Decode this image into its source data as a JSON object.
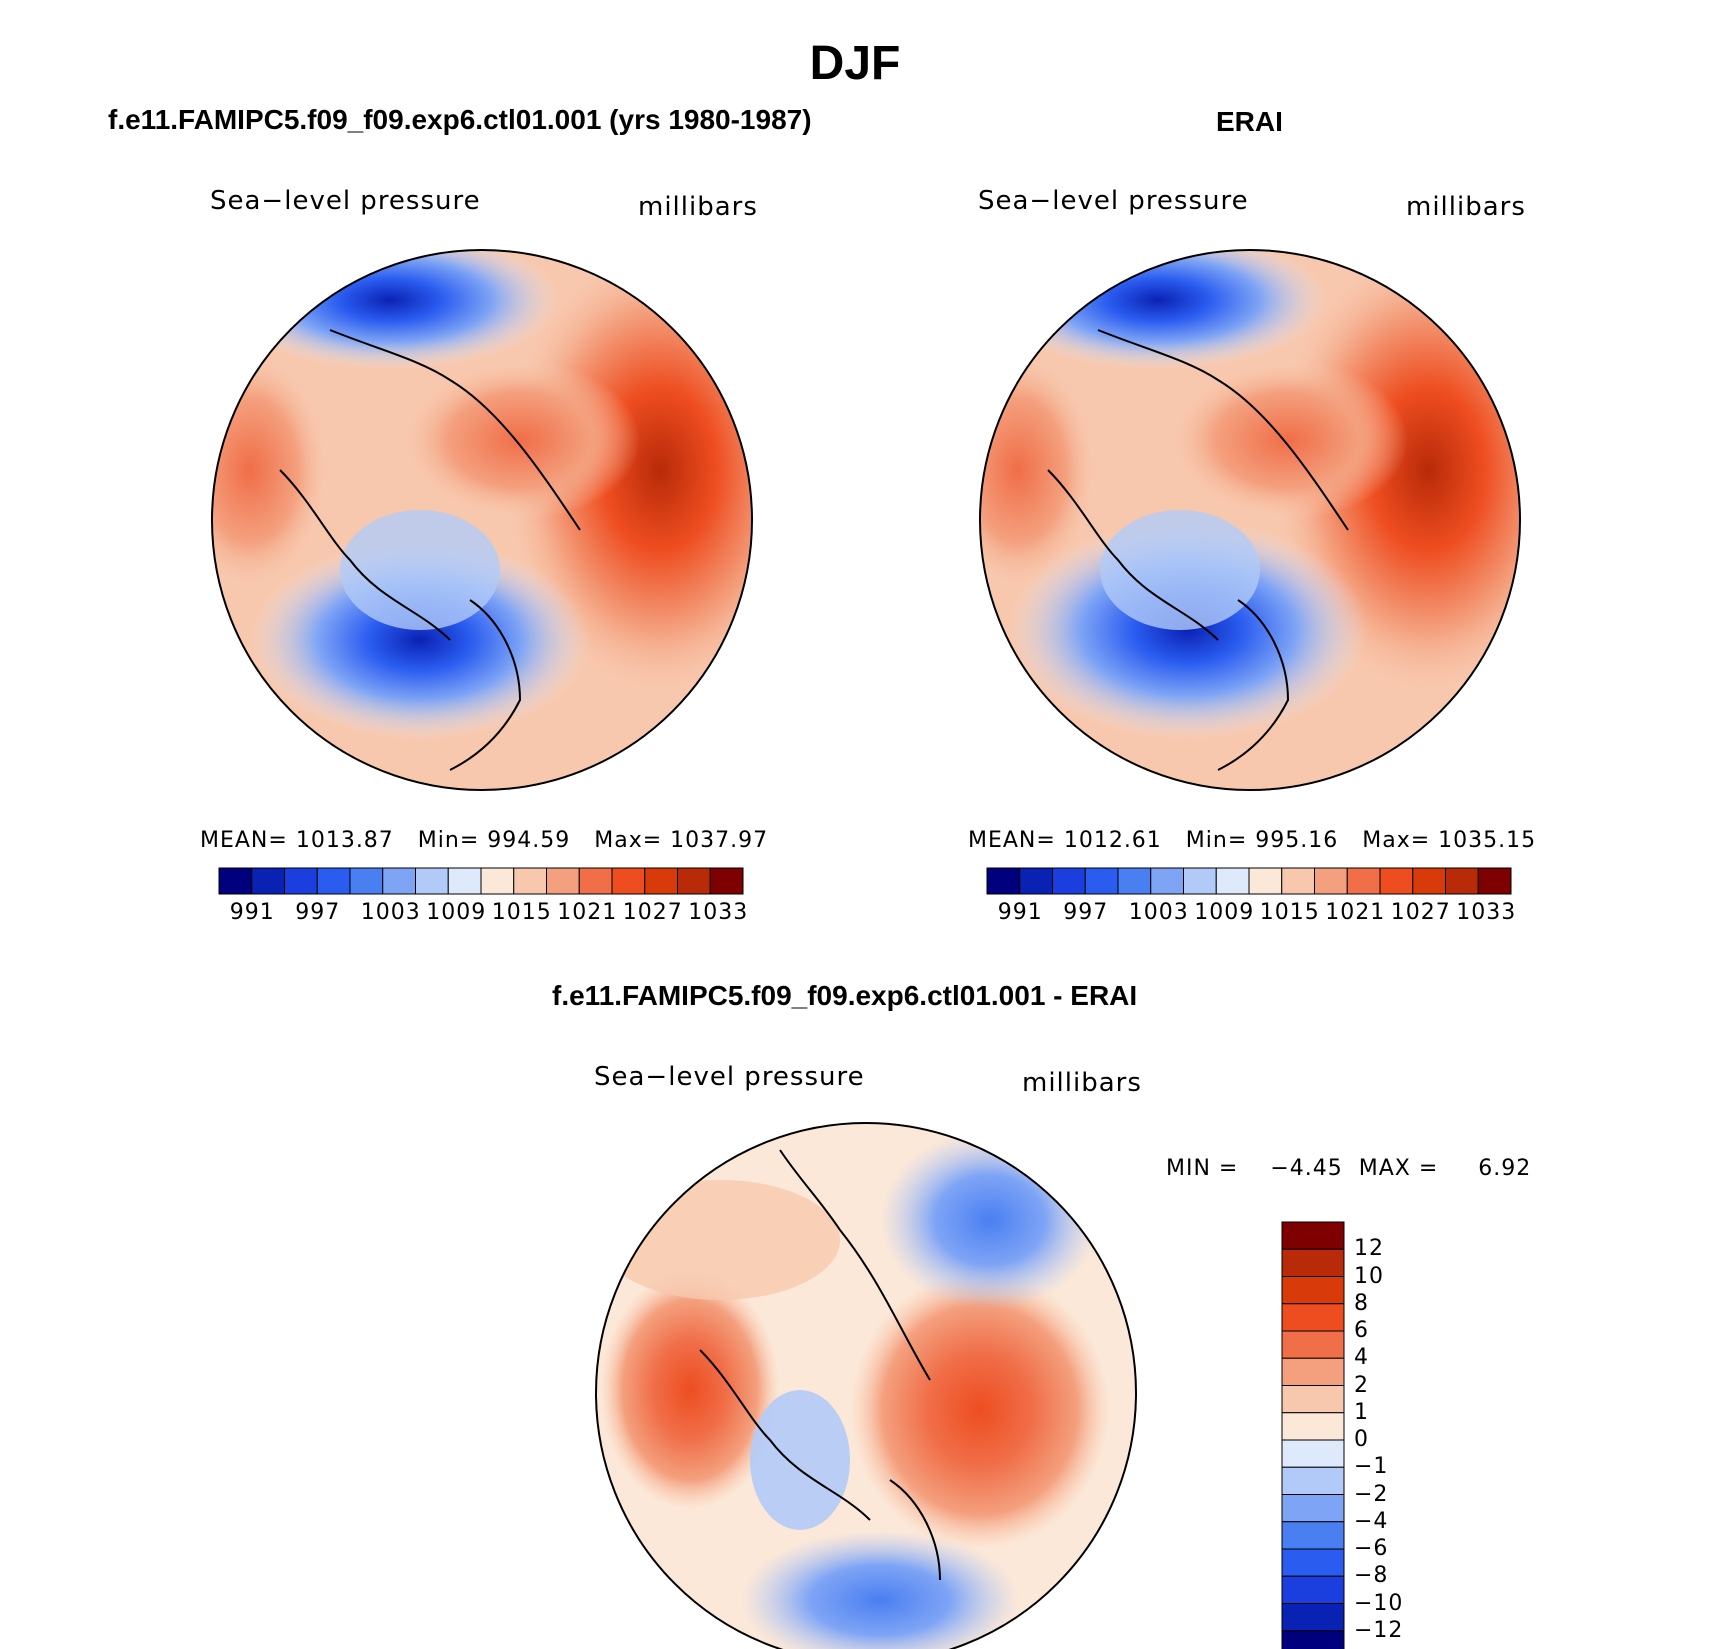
{
  "title": "DJF",
  "panels": [
    {
      "id": "model",
      "title": "f.e11.FAMIPC5.f09_f09.exp6.ctl01.001 (yrs 1980-1987)",
      "variable": "Sea−level pressure",
      "units": "millibars",
      "stats": {
        "mean_label": "MEAN=",
        "mean": "1013.87",
        "min_label": "Min=",
        "min": "994.59",
        "max_label": "Max=",
        "max": "1037.97"
      },
      "colorbar_labels": [
        "991",
        "997",
        "1003",
        "1009",
        "1015",
        "1021",
        "1027",
        "1033"
      ]
    },
    {
      "id": "obs",
      "title": "ERAI",
      "variable": "Sea−level pressure",
      "units": "millibars",
      "stats": {
        "mean_label": "MEAN=",
        "mean": "1012.61",
        "min_label": "Min=",
        "min": "995.16",
        "max_label": "Max=",
        "max": "1035.15"
      },
      "colorbar_labels": [
        "991",
        "997",
        "1003",
        "1009",
        "1015",
        "1021",
        "1027",
        "1033"
      ]
    },
    {
      "id": "diff",
      "title": "f.e11.FAMIPC5.f09_f09.exp6.ctl01.001 - ERAI",
      "variable": "Sea−level pressure",
      "units": "millibars",
      "stats": {
        "min_label": "MIN =",
        "min": "−4.45",
        "max_label": "MAX =",
        "max": "6.92"
      },
      "colorbar_labels": [
        "12",
        "10",
        "8",
        "6",
        "4",
        "2",
        "1",
        "0",
        "−1",
        "−2",
        "−4",
        "−6",
        "−8",
        "−10",
        "−12"
      ]
    }
  ],
  "colors": {
    "abs_scale": [
      "#00007f",
      "#0a22b4",
      "#1a3fde",
      "#2a5cf0",
      "#4a7ff2",
      "#7ea4f5",
      "#b2caf8",
      "#deeafb",
      "#fce8d8",
      "#f8c8ae",
      "#f4a07e",
      "#f06e48",
      "#ee4d20",
      "#d93a0a",
      "#b82a08",
      "#7f0000"
    ],
    "diff_scale": [
      "#7f0000",
      "#b82a08",
      "#d93a0a",
      "#ee4d20",
      "#f06e48",
      "#f4a07e",
      "#f8c8ae",
      "#fce8d8",
      "#deeafb",
      "#b2caf8",
      "#7ea4f5",
      "#4a7ff2",
      "#2a5cf0",
      "#1a3fde",
      "#0a22b4",
      "#00007f"
    ]
  },
  "map_data": {
    "projection": "north-polar-stereographic",
    "model_field": [
      "low over North Atlantic near Iceland",
      "low over North Pacific (Aleutian)",
      "high over Siberia/Asia",
      "high over North America"
    ],
    "obs_field": [
      "low over North Atlantic near Iceland",
      "low over North Pacific (Aleutian)",
      "high over Siberia/Asia",
      "high over North America"
    ],
    "diff_field": [
      "positive anomaly over Arctic/Russia",
      "negative anomaly over North Atlantic",
      "negative anomaly over North Pacific"
    ]
  }
}
